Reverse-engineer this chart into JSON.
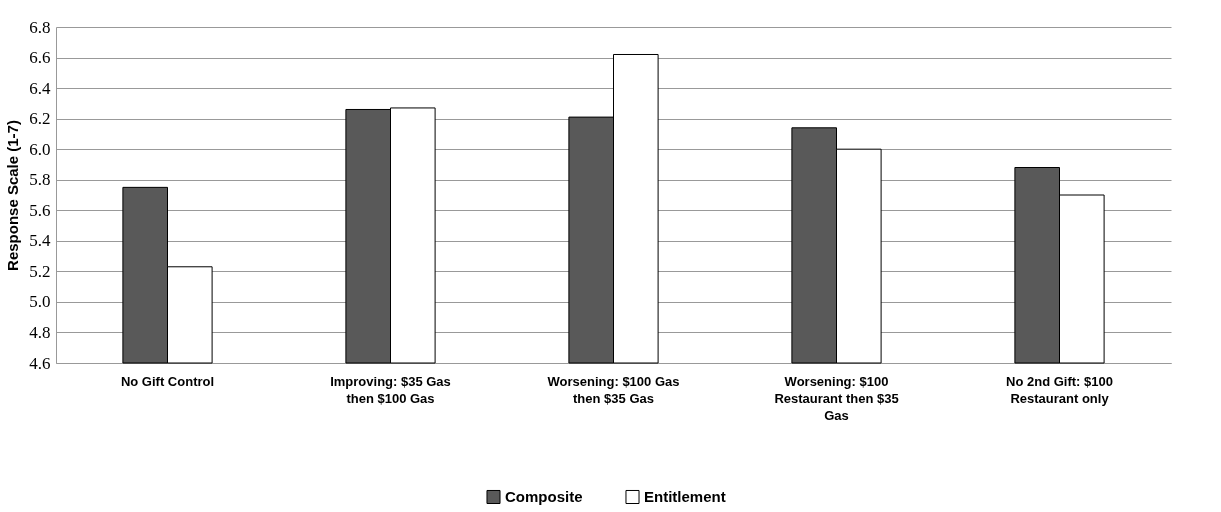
{
  "chart_data": {
    "type": "bar",
    "ylabel": "Response Scale (1-7)",
    "categories": [
      "No Gift Control",
      "Improving: $35 Gas then $100  Gas",
      "Worsening: $100  Gas then $35 Gas",
      "Worsening: $100 Restaurant then $35 Gas",
      "No 2nd Gift: $100 Restaurant only"
    ],
    "series": [
      {
        "name": "Composite",
        "color": "#595959",
        "values": [
          5.75,
          6.26,
          6.21,
          6.14,
          5.88
        ]
      },
      {
        "name": "Entitlement",
        "color": "#ffffff",
        "values": [
          5.23,
          6.27,
          6.62,
          6.0,
          5.7
        ]
      }
    ],
    "ylim": [
      4.6,
      6.8
    ],
    "yticks": [
      4.6,
      4.8,
      {
        "value": 5,
        "label": "5.0"
      },
      5.2,
      5.4,
      5.6,
      5.8,
      {
        "value": 6,
        "label": "6.0"
      },
      6.2,
      6.4,
      6.6,
      6.8
    ],
    "grid": "y",
    "legend": "bottom"
  }
}
